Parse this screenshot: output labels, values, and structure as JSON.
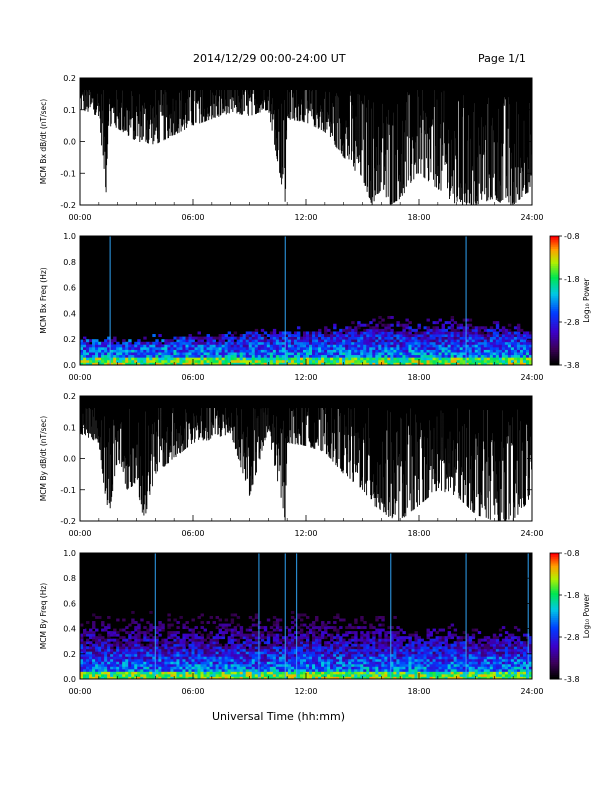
{
  "header": {
    "title": "2014/12/29  00:00-24:00 UT",
    "page": "Page 1/1"
  },
  "x_axis_title": "Universal Time (hh:mm)",
  "chart_data": [
    {
      "type": "line",
      "ylabel": "MCM Bx dB/dt (nT/sec)",
      "xlim": [
        0,
        24
      ],
      "ylim": [
        -0.2,
        0.2
      ],
      "xticks": [
        "00:00",
        "06:00",
        "12:00",
        "18:00",
        "24:00"
      ],
      "yticks": [
        -0.2,
        -0.1,
        0.0,
        0.1,
        0.2
      ],
      "yticklabels": [
        "-0.2",
        "-0.1",
        "0.0",
        "0.1",
        "0.2"
      ],
      "lower_envelope": {
        "x": [
          0,
          1,
          1.4,
          1.5,
          2,
          3,
          4,
          5,
          6,
          7,
          8,
          9,
          10,
          10.9,
          11,
          12,
          13,
          14,
          15,
          15.5,
          16,
          16.5,
          17,
          18,
          19,
          20,
          21,
          22,
          22.5,
          23,
          24
        ],
        "y": [
          0.1,
          0.08,
          -0.17,
          0.05,
          0.04,
          0.0,
          -0.01,
          0.02,
          0.05,
          0.07,
          0.09,
          0.08,
          0.1,
          -0.2,
          0.07,
          0.06,
          0.03,
          -0.05,
          -0.12,
          -0.2,
          -0.15,
          -0.2,
          -0.18,
          -0.1,
          -0.15,
          -0.2,
          -0.2,
          -0.18,
          -0.2,
          -0.2,
          -0.15
        ]
      },
      "upper_envelope": 0.2,
      "color": "#000000"
    },
    {
      "type": "heatmap",
      "ylabel": "MCM Bx Freq (Hz)",
      "xlim": [
        0,
        24
      ],
      "ylim": [
        0,
        1.0
      ],
      "xticks": [
        "00:00",
        "06:00",
        "12:00",
        "18:00",
        "24:00"
      ],
      "yticks": [
        0.0,
        0.2,
        0.4,
        0.6,
        0.8,
        1.0
      ],
      "yticklabels": [
        "0.0",
        "0.2",
        "0.4",
        "0.6",
        "0.8",
        "1.0"
      ],
      "colorbar": {
        "label": "Log₁₀ Power",
        "range": [
          -3.8,
          -0.8
        ],
        "ticks": [
          "-0.8",
          "-1.8",
          "-2.8",
          "-3.8"
        ]
      },
      "activity_profile": {
        "x": [
          0,
          2,
          4,
          6,
          8,
          10,
          12,
          14,
          16,
          18,
          20,
          22,
          24
        ],
        "top_freq": [
          0.2,
          0.18,
          0.2,
          0.22,
          0.22,
          0.25,
          0.25,
          0.3,
          0.35,
          0.3,
          0.35,
          0.3,
          0.28
        ]
      },
      "vertical_lines_hours": [
        1.6,
        10.9,
        20.5
      ]
    },
    {
      "type": "line",
      "ylabel": "MCM By dB/dt (nT/sec)",
      "xlim": [
        0,
        24
      ],
      "ylim": [
        -0.2,
        0.2
      ],
      "xticks": [
        "00:00",
        "06:00",
        "12:00",
        "18:00",
        "24:00"
      ],
      "yticks": [
        -0.2,
        -0.1,
        0.0,
        0.1,
        0.2
      ],
      "yticklabels": [
        "-0.2",
        "-0.1",
        "0.0",
        "0.1",
        "0.2"
      ],
      "lower_envelope": {
        "x": [
          0,
          1,
          1.5,
          2,
          2.5,
          3,
          3.4,
          4,
          5,
          6,
          7,
          8,
          9,
          10,
          10.9,
          11,
          12,
          13,
          14,
          15,
          16,
          17,
          18,
          19,
          20,
          21,
          22,
          23,
          24
        ],
        "y": [
          0.08,
          0.05,
          -0.2,
          0.0,
          -0.1,
          -0.08,
          -0.2,
          -0.05,
          0.0,
          0.05,
          0.06,
          0.08,
          -0.12,
          0.08,
          -0.2,
          0.05,
          0.04,
          0.02,
          -0.05,
          -0.1,
          -0.18,
          -0.2,
          -0.15,
          -0.1,
          -0.12,
          -0.18,
          -0.2,
          -0.2,
          -0.12
        ]
      },
      "upper_envelope": 0.2,
      "color": "#000000"
    },
    {
      "type": "heatmap",
      "ylabel": "MCM By Freq (Hz)",
      "xlim": [
        0,
        24
      ],
      "ylim": [
        0,
        1.0
      ],
      "xticks": [
        "00:00",
        "06:00",
        "12:00",
        "18:00",
        "24:00"
      ],
      "yticks": [
        0.0,
        0.2,
        0.4,
        0.6,
        0.8,
        1.0
      ],
      "yticklabels": [
        "0.0",
        "0.2",
        "0.4",
        "0.6",
        "0.8",
        "1.0"
      ],
      "colorbar": {
        "label": "Log₁₀ Power",
        "range": [
          -3.8,
          -0.8
        ],
        "ticks": [
          "-0.8",
          "-1.8",
          "-2.8",
          "-3.8"
        ]
      },
      "activity_profile": {
        "x": [
          0,
          2,
          4,
          6,
          8,
          10,
          12,
          14,
          16,
          17,
          18,
          20,
          22,
          24
        ],
        "top_freq": [
          0.85,
          0.9,
          1.0,
          1.0,
          1.0,
          1.0,
          1.0,
          1.0,
          0.9,
          0.45,
          0.35,
          0.4,
          0.35,
          0.4
        ]
      },
      "vertical_lines_hours": [
        4.0,
        9.5,
        10.9,
        11.5,
        16.5,
        20.5,
        23.8
      ]
    }
  ]
}
